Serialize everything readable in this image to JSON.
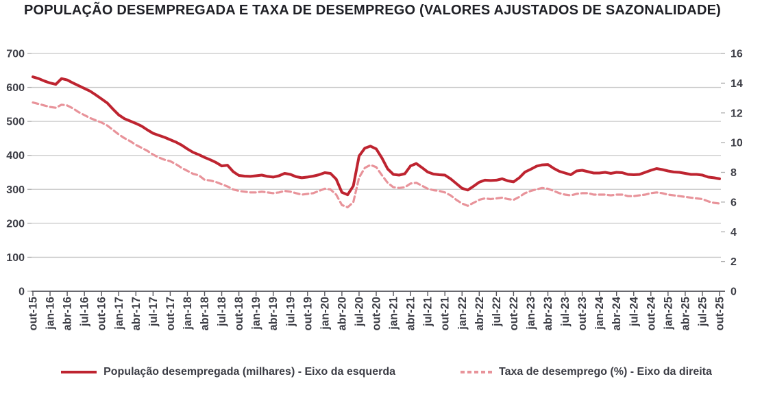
{
  "title": "POPULAÇÃO DESEMPREGADA E TAXA DE DESEMPREGO (VALORES AJUSTADOS DE SAZONALIDADE)",
  "chart_data": {
    "type": "line",
    "title": "POPULAÇÃO DESEMPREGADA E TAXA DE DESEMPREGO (VALORES AJUSTADOS DE SAZONALIDADE)",
    "frequency": "monthly",
    "x_start": "out-15",
    "x_end": "out-25",
    "grid": "horizontal",
    "legend_position": "bottom",
    "x_tick_labels": [
      "out-15",
      "jan-16",
      "abr-16",
      "jul-16",
      "out-16",
      "jan-17",
      "abr-17",
      "jul-17",
      "out-17",
      "jan-18",
      "abr-18",
      "jul-18",
      "out-18",
      "jan-19",
      "abr-19",
      "jul-19",
      "out-19",
      "jan-20",
      "abr-20",
      "jul-20",
      "out-20",
      "jan-21",
      "abr-21",
      "jul-21",
      "out-21",
      "jan-22",
      "abr-22",
      "jul-22",
      "out-22",
      "jan-23",
      "abr-23",
      "jul-23",
      "out-23",
      "jan-24",
      "abr-24",
      "jul-24",
      "out-24",
      "jan-25",
      "abr-25",
      "jul-25",
      "out-25"
    ],
    "left_axis": {
      "ticks": [
        0,
        100,
        200,
        300,
        400,
        500,
        600,
        700
      ],
      "range": [
        0,
        700
      ]
    },
    "right_axis": {
      "ticks": [
        0,
        2,
        4,
        6,
        8,
        10,
        12,
        14,
        16
      ],
      "range": [
        0,
        16
      ]
    },
    "colors": {
      "grid": "#c8c8c8",
      "edge_tick": "#aeaeae",
      "x_axis": "#54545b",
      "text": "#3c3d45"
    },
    "series": [
      {
        "name": "População desempregada (milhares) - Eixo da esquerda",
        "axis": "left",
        "style": "solid",
        "color": "#be2430",
        "values": [
          631,
          626,
          619,
          613,
          609,
          626,
          622,
          613,
          605,
          597,
          589,
          578,
          566,
          554,
          536,
          519,
          508,
          501,
          494,
          486,
          475,
          465,
          459,
          453,
          446,
          439,
          430,
          419,
          409,
          402,
          394,
          387,
          379,
          369,
          371,
          352,
          341,
          339,
          338,
          340,
          342,
          338,
          336,
          340,
          347,
          344,
          337,
          334,
          336,
          339,
          343,
          349,
          347,
          330,
          291,
          284,
          310,
          398,
          421,
          427,
          419,
          392,
          360,
          344,
          342,
          346,
          369,
          376,
          364,
          351,
          345,
          343,
          342,
          331,
          317,
          303,
          298,
          309,
          321,
          327,
          326,
          327,
          331,
          325,
          322,
          334,
          351,
          359,
          368,
          372,
          373,
          362,
          353,
          348,
          343,
          354,
          356,
          352,
          348,
          348,
          350,
          347,
          350,
          349,
          344,
          343,
          344,
          350,
          356,
          361,
          358,
          354,
          351,
          350,
          347,
          344,
          344,
          342,
          336,
          334,
          331
        ]
      },
      {
        "name": "Taxa de desemprego (%) - Eixo da direita",
        "axis": "right",
        "style": "dashed",
        "color": "#e8939a",
        "values": [
          12.7,
          12.6,
          12.5,
          12.4,
          12.35,
          12.55,
          12.5,
          12.3,
          12.05,
          11.85,
          11.65,
          11.5,
          11.35,
          11.15,
          10.85,
          10.55,
          10.3,
          10.1,
          9.85,
          9.65,
          9.45,
          9.2,
          9.0,
          8.85,
          8.75,
          8.55,
          8.3,
          8.1,
          7.9,
          7.8,
          7.5,
          7.45,
          7.35,
          7.2,
          7.05,
          6.85,
          6.75,
          6.7,
          6.65,
          6.65,
          6.7,
          6.65,
          6.6,
          6.65,
          6.75,
          6.7,
          6.6,
          6.5,
          6.55,
          6.6,
          6.75,
          6.9,
          6.85,
          6.5,
          5.8,
          5.65,
          6.0,
          7.65,
          8.3,
          8.5,
          8.35,
          7.8,
          7.3,
          7.0,
          6.95,
          7.0,
          7.25,
          7.3,
          7.1,
          6.9,
          6.8,
          6.75,
          6.65,
          6.45,
          6.15,
          5.9,
          5.75,
          5.95,
          6.15,
          6.25,
          6.2,
          6.25,
          6.3,
          6.2,
          6.15,
          6.35,
          6.6,
          6.75,
          6.85,
          6.95,
          6.9,
          6.75,
          6.6,
          6.5,
          6.45,
          6.55,
          6.6,
          6.6,
          6.5,
          6.5,
          6.5,
          6.45,
          6.5,
          6.5,
          6.4,
          6.4,
          6.45,
          6.5,
          6.6,
          6.65,
          6.6,
          6.5,
          6.45,
          6.4,
          6.35,
          6.3,
          6.25,
          6.2,
          6.05,
          5.95,
          5.9
        ]
      }
    ]
  },
  "legend": {
    "items": [
      {
        "label": "População desempregada (milhares) - Eixo da esquerda",
        "style": "solid"
      },
      {
        "label": "Taxa de desemprego (%) - Eixo da direita",
        "style": "dashed"
      }
    ]
  }
}
